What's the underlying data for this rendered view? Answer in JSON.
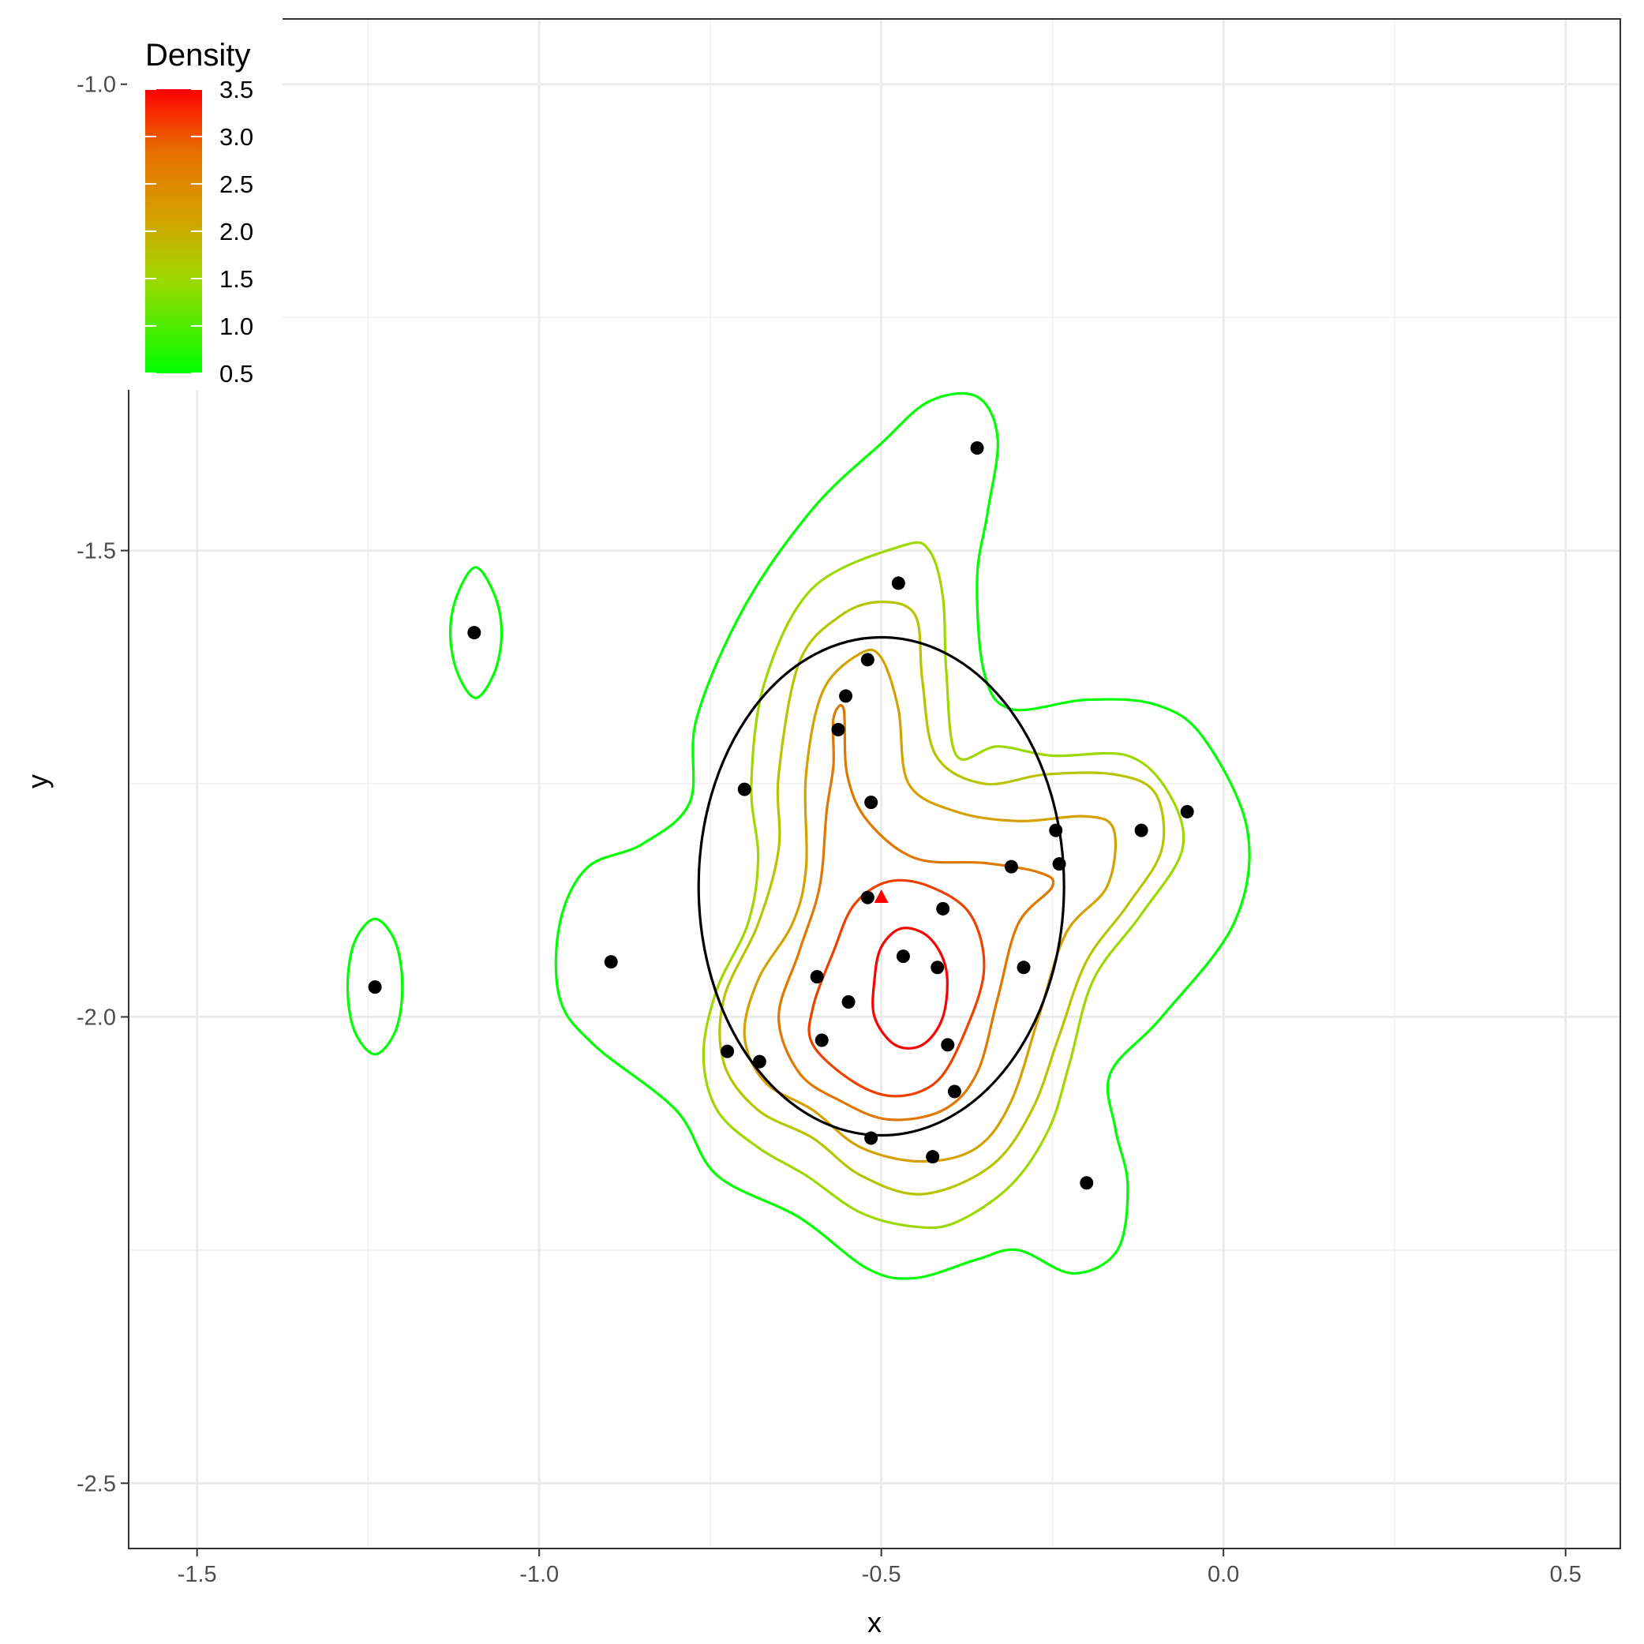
{
  "chart_data": {
    "type": "scatter",
    "xlabel": "x",
    "ylabel": "y",
    "xlim": [
      -1.6,
      0.58
    ],
    "ylim": [
      -2.57,
      -0.93
    ],
    "x_ticks": [
      {
        "value": -1.5,
        "label": "-1.5"
      },
      {
        "value": -1.0,
        "label": "-1.0"
      },
      {
        "value": -0.5,
        "label": "-0.5"
      },
      {
        "value": 0.0,
        "label": "0.0"
      },
      {
        "value": 0.5,
        "label": "0.5"
      }
    ],
    "y_ticks": [
      {
        "value": -1.0,
        "label": "-1.0"
      },
      {
        "value": -1.5,
        "label": "-1.5"
      },
      {
        "value": -2.0,
        "label": "-2.0"
      },
      {
        "value": -2.5,
        "label": "-2.5"
      }
    ],
    "grid": true,
    "points": [
      {
        "x": -0.36,
        "y": -1.39
      },
      {
        "x": -0.475,
        "y": -1.535
      },
      {
        "x": -1.095,
        "y": -1.588
      },
      {
        "x": -0.52,
        "y": -1.617
      },
      {
        "x": -0.552,
        "y": -1.656
      },
      {
        "x": -0.563,
        "y": -1.692
      },
      {
        "x": -0.7,
        "y": -1.756
      },
      {
        "x": -0.515,
        "y": -1.77
      },
      {
        "x": -0.053,
        "y": -1.78
      },
      {
        "x": -0.245,
        "y": -1.8
      },
      {
        "x": -0.12,
        "y": -1.8
      },
      {
        "x": -0.24,
        "y": -1.836
      },
      {
        "x": -0.31,
        "y": -1.839
      },
      {
        "x": -0.52,
        "y": -1.872
      },
      {
        "x": -0.41,
        "y": -1.884
      },
      {
        "x": -0.895,
        "y": -1.941
      },
      {
        "x": -0.468,
        "y": -1.935
      },
      {
        "x": -0.418,
        "y": -1.947
      },
      {
        "x": -0.292,
        "y": -1.947
      },
      {
        "x": -0.594,
        "y": -1.957
      },
      {
        "x": -1.24,
        "y": -1.968
      },
      {
        "x": -0.548,
        "y": -1.984
      },
      {
        "x": -0.587,
        "y": -2.025
      },
      {
        "x": -0.403,
        "y": -2.03
      },
      {
        "x": -0.725,
        "y": -2.037
      },
      {
        "x": -0.678,
        "y": -2.048
      },
      {
        "x": -0.393,
        "y": -2.08
      },
      {
        "x": -0.515,
        "y": -2.13
      },
      {
        "x": -0.425,
        "y": -2.15
      },
      {
        "x": -0.2,
        "y": -2.178
      }
    ],
    "mean_point": {
      "x": -0.5,
      "y": -1.871,
      "color": "#ff0000",
      "shape": "triangle"
    },
    "ellipse": {
      "cx": -0.5,
      "cy": -1.86,
      "rx": 0.267,
      "ry": 0.267,
      "color": "#000000"
    },
    "contours": [
      {
        "level": 0.5,
        "color": "#00ff00",
        "paths": [
          [
            [
              -0.43,
              -1.34
            ],
            [
              -0.36,
              -1.335
            ],
            [
              -0.33,
              -1.38
            ],
            [
              -0.345,
              -1.46
            ],
            [
              -0.36,
              -1.53
            ],
            [
              -0.35,
              -1.63
            ],
            [
              -0.31,
              -1.67
            ],
            [
              -0.2,
              -1.66
            ],
            [
              -0.1,
              -1.665
            ],
            [
              -0.03,
              -1.7
            ],
            [
              0.035,
              -1.8
            ],
            [
              0.015,
              -1.9
            ],
            [
              -0.09,
              -2.0
            ],
            [
              -0.165,
              -2.06
            ],
            [
              -0.158,
              -2.12
            ],
            [
              -0.14,
              -2.18
            ],
            [
              -0.155,
              -2.25
            ],
            [
              -0.22,
              -2.275
            ],
            [
              -0.3,
              -2.25
            ],
            [
              -0.36,
              -2.26
            ],
            [
              -0.45,
              -2.28
            ],
            [
              -0.52,
              -2.27
            ],
            [
              -0.62,
              -2.215
            ],
            [
              -0.74,
              -2.17
            ],
            [
              -0.8,
              -2.1
            ],
            [
              -0.92,
              -2.03
            ],
            [
              -0.97,
              -1.98
            ],
            [
              -0.97,
              -1.9
            ],
            [
              -0.93,
              -1.84
            ],
            [
              -0.85,
              -1.815
            ],
            [
              -0.78,
              -1.77
            ],
            [
              -0.77,
              -1.68
            ],
            [
              -0.7,
              -1.56
            ],
            [
              -0.6,
              -1.455
            ],
            [
              -0.5,
              -1.385
            ]
          ],
          [
            [
              -1.093,
              -1.518
            ],
            [
              -1.065,
              -1.548
            ],
            [
              -1.055,
              -1.588
            ],
            [
              -1.065,
              -1.63
            ],
            [
              -1.093,
              -1.658
            ],
            [
              -1.12,
              -1.63
            ],
            [
              -1.13,
              -1.588
            ],
            [
              -1.12,
              -1.548
            ]
          ],
          [
            [
              -1.24,
              -1.895
            ],
            [
              -1.21,
              -1.92
            ],
            [
              -1.2,
              -1.968
            ],
            [
              -1.21,
              -2.015
            ],
            [
              -1.24,
              -2.04
            ],
            [
              -1.27,
              -2.015
            ],
            [
              -1.28,
              -1.968
            ],
            [
              -1.27,
              -1.92
            ]
          ]
        ]
      },
      {
        "level": 1.0,
        "color": "#9ed800",
        "paths": [
          [
            [
              -0.47,
              -1.495
            ],
            [
              -0.43,
              -1.5
            ],
            [
              -0.41,
              -1.55
            ],
            [
              -0.405,
              -1.63
            ],
            [
              -0.39,
              -1.72
            ],
            [
              -0.33,
              -1.71
            ],
            [
              -0.25,
              -1.72
            ],
            [
              -0.14,
              -1.72
            ],
            [
              -0.08,
              -1.76
            ],
            [
              -0.06,
              -1.82
            ],
            [
              -0.12,
              -1.89
            ],
            [
              -0.19,
              -1.96
            ],
            [
              -0.225,
              -2.05
            ],
            [
              -0.255,
              -2.12
            ],
            [
              -0.31,
              -2.18
            ],
            [
              -0.39,
              -2.22
            ],
            [
              -0.45,
              -2.225
            ],
            [
              -0.53,
              -2.21
            ],
            [
              -0.61,
              -2.17
            ],
            [
              -0.68,
              -2.14
            ],
            [
              -0.74,
              -2.1
            ],
            [
              -0.76,
              -2.04
            ],
            [
              -0.74,
              -1.97
            ],
            [
              -0.695,
              -1.9
            ],
            [
              -0.68,
              -1.83
            ],
            [
              -0.69,
              -1.75
            ],
            [
              -0.67,
              -1.64
            ],
            [
              -0.6,
              -1.54
            ]
          ]
        ]
      },
      {
        "level": 1.5,
        "color": "#b8c400",
        "paths": [
          [
            [
              -0.5,
              -1.555
            ],
            [
              -0.45,
              -1.57
            ],
            [
              -0.44,
              -1.64
            ],
            [
              -0.42,
              -1.72
            ],
            [
              -0.35,
              -1.75
            ],
            [
              -0.26,
              -1.74
            ],
            [
              -0.16,
              -1.74
            ],
            [
              -0.1,
              -1.76
            ],
            [
              -0.09,
              -1.82
            ],
            [
              -0.14,
              -1.88
            ],
            [
              -0.2,
              -1.94
            ],
            [
              -0.24,
              -2.02
            ],
            [
              -0.28,
              -2.1
            ],
            [
              -0.34,
              -2.16
            ],
            [
              -0.44,
              -2.19
            ],
            [
              -0.53,
              -2.17
            ],
            [
              -0.6,
              -2.13
            ],
            [
              -0.68,
              -2.1
            ],
            [
              -0.73,
              -2.05
            ],
            [
              -0.73,
              -1.98
            ],
            [
              -0.68,
              -1.9
            ],
            [
              -0.65,
              -1.82
            ],
            [
              -0.65,
              -1.74
            ],
            [
              -0.62,
              -1.62
            ],
            [
              -0.56,
              -1.57
            ]
          ]
        ]
      },
      {
        "level": 2.0,
        "color": "#d4a100",
        "paths": [
          [
            [
              -0.53,
              -1.61
            ],
            [
              -0.5,
              -1.615
            ],
            [
              -0.475,
              -1.67
            ],
            [
              -0.46,
              -1.75
            ],
            [
              -0.39,
              -1.78
            ],
            [
              -0.3,
              -1.79
            ],
            [
              -0.2,
              -1.785
            ],
            [
              -0.16,
              -1.8
            ],
            [
              -0.17,
              -1.86
            ],
            [
              -0.23,
              -1.91
            ],
            [
              -0.27,
              -2.0
            ],
            [
              -0.31,
              -2.09
            ],
            [
              -0.36,
              -2.14
            ],
            [
              -0.44,
              -2.155
            ],
            [
              -0.53,
              -2.14
            ],
            [
              -0.6,
              -2.1
            ],
            [
              -0.67,
              -2.07
            ],
            [
              -0.7,
              -2.02
            ],
            [
              -0.68,
              -1.96
            ],
            [
              -0.63,
              -1.9
            ],
            [
              -0.61,
              -1.84
            ],
            [
              -0.61,
              -1.74
            ],
            [
              -0.585,
              -1.65
            ]
          ]
        ]
      },
      {
        "level": 2.5,
        "color": "#e07800",
        "paths": [
          [
            [
              -0.57,
              -1.68
            ],
            [
              -0.555,
              -1.67
            ],
            [
              -0.55,
              -1.74
            ],
            [
              -0.52,
              -1.79
            ],
            [
              -0.45,
              -1.83
            ],
            [
              -0.35,
              -1.835
            ],
            [
              -0.27,
              -1.845
            ],
            [
              -0.25,
              -1.86
            ],
            [
              -0.3,
              -1.9
            ],
            [
              -0.33,
              -1.98
            ],
            [
              -0.36,
              -2.06
            ],
            [
              -0.41,
              -2.1
            ],
            [
              -0.49,
              -2.11
            ],
            [
              -0.56,
              -2.09
            ],
            [
              -0.62,
              -2.06
            ],
            [
              -0.65,
              -2.0
            ],
            [
              -0.62,
              -1.93
            ],
            [
              -0.59,
              -1.86
            ],
            [
              -0.58,
              -1.78
            ],
            [
              -0.57,
              -1.73
            ]
          ]
        ]
      },
      {
        "level": 3.0,
        "color": "#f04000",
        "paths": [
          [
            [
              -0.49,
              -1.855
            ],
            [
              -0.43,
              -1.86
            ],
            [
              -0.37,
              -1.89
            ],
            [
              -0.35,
              -1.95
            ],
            [
              -0.38,
              -2.02
            ],
            [
              -0.42,
              -2.07
            ],
            [
              -0.48,
              -2.085
            ],
            [
              -0.54,
              -2.07
            ],
            [
              -0.6,
              -2.03
            ],
            [
              -0.6,
              -1.99
            ],
            [
              -0.57,
              -1.93
            ],
            [
              -0.54,
              -1.88
            ]
          ]
        ]
      },
      {
        "level": 3.5,
        "color": "#ff0000",
        "paths": [
          [
            [
              -0.47,
              -1.905
            ],
            [
              -0.43,
              -1.915
            ],
            [
              -0.405,
              -1.95
            ],
            [
              -0.41,
              -2.0
            ],
            [
              -0.44,
              -2.03
            ],
            [
              -0.48,
              -2.03
            ],
            [
              -0.51,
              -2.0
            ],
            [
              -0.51,
              -1.96
            ],
            [
              -0.5,
              -1.925
            ]
          ]
        ]
      }
    ],
    "legend": {
      "title": "Density",
      "position": "top-left",
      "labels": [
        "3.5",
        "3.0",
        "2.5",
        "2.0",
        "1.5",
        "1.0",
        "0.5"
      ],
      "values": [
        3.5,
        3.0,
        2.5,
        2.0,
        1.5,
        1.0,
        0.5
      ],
      "color_low": "#00ff00",
      "color_high": "#ff0000"
    }
  }
}
